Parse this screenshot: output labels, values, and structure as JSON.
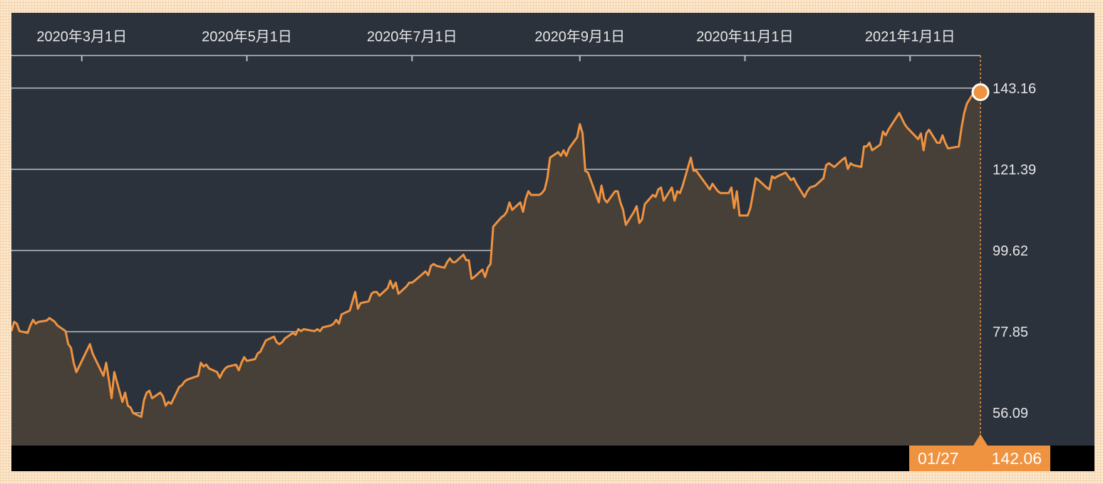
{
  "chart_data": {
    "type": "area",
    "title": "",
    "xlabel": "",
    "ylabel": "",
    "x_start": "2020-02-04",
    "x_end": "2021-01-27",
    "x_tick_labels": [
      {
        "label": "2020年3月1日",
        "date": "2020-03-01"
      },
      {
        "label": "2020年5月1日",
        "date": "2020-05-01"
      },
      {
        "label": "2020年7月1日",
        "date": "2020-07-01"
      },
      {
        "label": "2020年9月1日",
        "date": "2020-09-01"
      },
      {
        "label": "2020年11月1日",
        "date": "2020-11-01"
      },
      {
        "label": "2021年1月1日",
        "date": "2021-01-01"
      }
    ],
    "y_ticks": [
      "143.16",
      "121.39",
      "99.62",
      "77.85",
      "56.09"
    ],
    "ylim": [
      47.3,
      151.9
    ],
    "grid": true,
    "colors": {
      "line": "#ef9340",
      "area": "#474039",
      "background": "#2b323c",
      "grid": "#bcbcbc"
    },
    "series": [
      {
        "points": [
          [
            "2020-02-04",
            78.0
          ],
          [
            "2020-02-05",
            80.5
          ],
          [
            "2020-02-06",
            80.0
          ],
          [
            "2020-02-07",
            78.0
          ],
          [
            "2020-02-10",
            77.5
          ],
          [
            "2020-02-11",
            79.5
          ],
          [
            "2020-02-12",
            81.0
          ],
          [
            "2020-02-13",
            80.0
          ],
          [
            "2020-02-14",
            80.5
          ],
          [
            "2020-02-17",
            80.8
          ],
          [
            "2020-02-18",
            81.5
          ],
          [
            "2020-02-19",
            81.0
          ],
          [
            "2020-02-20",
            80.5
          ],
          [
            "2020-02-21",
            79.5
          ],
          [
            "2020-02-24",
            78.0
          ],
          [
            "2020-02-25",
            74.5
          ],
          [
            "2020-02-26",
            73.5
          ],
          [
            "2020-02-27",
            69.5
          ],
          [
            "2020-02-28",
            67.0
          ],
          [
            "2020-03-02",
            71.5
          ],
          [
            "2020-03-03",
            73.0
          ],
          [
            "2020-03-04",
            74.5
          ],
          [
            "2020-03-05",
            72.0
          ],
          [
            "2020-03-06",
            70.5
          ],
          [
            "2020-03-09",
            66.0
          ],
          [
            "2020-03-10",
            69.5
          ],
          [
            "2020-03-11",
            65.0
          ],
          [
            "2020-03-12",
            60.0
          ],
          [
            "2020-03-13",
            67.0
          ],
          [
            "2020-03-16",
            59.0
          ],
          [
            "2020-03-17",
            61.5
          ],
          [
            "2020-03-18",
            58.0
          ],
          [
            "2020-03-19",
            57.5
          ],
          [
            "2020-03-20",
            56.0
          ],
          [
            "2020-03-23",
            55.0
          ],
          [
            "2020-03-24",
            59.5
          ],
          [
            "2020-03-25",
            61.5
          ],
          [
            "2020-03-26",
            62.0
          ],
          [
            "2020-03-27",
            60.0
          ],
          [
            "2020-03-30",
            61.5
          ],
          [
            "2020-03-31",
            60.5
          ],
          [
            "2020-04-01",
            58.0
          ],
          [
            "2020-04-02",
            59.0
          ],
          [
            "2020-04-03",
            58.5
          ],
          [
            "2020-04-06",
            63.0
          ],
          [
            "2020-04-07",
            63.5
          ],
          [
            "2020-04-08",
            64.5
          ],
          [
            "2020-04-09",
            65.0
          ],
          [
            "2020-04-13",
            66.0
          ],
          [
            "2020-04-14",
            69.5
          ],
          [
            "2020-04-15",
            68.5
          ],
          [
            "2020-04-16",
            69.0
          ],
          [
            "2020-04-17",
            68.0
          ],
          [
            "2020-04-20",
            67.0
          ],
          [
            "2020-04-21",
            65.5
          ],
          [
            "2020-04-22",
            67.0
          ],
          [
            "2020-04-23",
            68.0
          ],
          [
            "2020-04-24",
            68.5
          ],
          [
            "2020-04-27",
            69.0
          ],
          [
            "2020-04-28",
            67.5
          ],
          [
            "2020-04-29",
            69.5
          ],
          [
            "2020-04-30",
            71.0
          ],
          [
            "2020-05-01",
            70.0
          ],
          [
            "2020-05-04",
            70.5
          ],
          [
            "2020-05-05",
            72.0
          ],
          [
            "2020-05-06",
            72.5
          ],
          [
            "2020-05-07",
            74.0
          ],
          [
            "2020-05-08",
            75.5
          ],
          [
            "2020-05-11",
            76.5
          ],
          [
            "2020-05-12",
            75.0
          ],
          [
            "2020-05-13",
            74.5
          ],
          [
            "2020-05-14",
            75.0
          ],
          [
            "2020-05-15",
            76.0
          ],
          [
            "2020-05-18",
            77.5
          ],
          [
            "2020-05-19",
            77.0
          ],
          [
            "2020-05-20",
            78.5
          ],
          [
            "2020-05-21",
            78.0
          ],
          [
            "2020-05-22",
            78.5
          ],
          [
            "2020-05-26",
            78.0
          ],
          [
            "2020-05-27",
            78.5
          ],
          [
            "2020-05-28",
            78.0
          ],
          [
            "2020-05-29",
            79.0
          ],
          [
            "2020-06-01",
            79.5
          ],
          [
            "2020-06-02",
            80.0
          ],
          [
            "2020-06-03",
            81.0
          ],
          [
            "2020-06-04",
            80.0
          ],
          [
            "2020-06-05",
            82.5
          ],
          [
            "2020-06-08",
            83.5
          ],
          [
            "2020-06-09",
            86.0
          ],
          [
            "2020-06-10",
            88.5
          ],
          [
            "2020-06-11",
            84.0
          ],
          [
            "2020-06-12",
            85.5
          ],
          [
            "2020-06-15",
            86.0
          ],
          [
            "2020-06-16",
            88.0
          ],
          [
            "2020-06-17",
            88.5
          ],
          [
            "2020-06-18",
            88.5
          ],
          [
            "2020-06-19",
            87.5
          ],
          [
            "2020-06-22",
            89.5
          ],
          [
            "2020-06-23",
            91.5
          ],
          [
            "2020-06-24",
            89.5
          ],
          [
            "2020-06-25",
            91.0
          ],
          [
            "2020-06-26",
            88.0
          ],
          [
            "2020-06-29",
            90.0
          ],
          [
            "2020-06-30",
            91.0
          ],
          [
            "2020-07-01",
            91.0
          ],
          [
            "2020-07-02",
            91.5
          ],
          [
            "2020-07-06",
            94.0
          ],
          [
            "2020-07-07",
            93.0
          ],
          [
            "2020-07-08",
            95.5
          ],
          [
            "2020-07-09",
            96.0
          ],
          [
            "2020-07-10",
            95.5
          ],
          [
            "2020-07-13",
            95.0
          ],
          [
            "2020-07-14",
            96.5
          ],
          [
            "2020-07-15",
            97.5
          ],
          [
            "2020-07-16",
            96.5
          ],
          [
            "2020-07-17",
            96.5
          ],
          [
            "2020-07-20",
            98.5
          ],
          [
            "2020-07-21",
            97.0
          ],
          [
            "2020-07-22",
            97.0
          ],
          [
            "2020-07-23",
            92.0
          ],
          [
            "2020-07-24",
            92.5
          ],
          [
            "2020-07-27",
            94.5
          ],
          [
            "2020-07-28",
            92.5
          ],
          [
            "2020-07-29",
            95.0
          ],
          [
            "2020-07-30",
            96.0
          ],
          [
            "2020-07-31",
            106.0
          ],
          [
            "2020-08-03",
            108.5
          ],
          [
            "2020-08-04",
            109.0
          ],
          [
            "2020-08-05",
            110.0
          ],
          [
            "2020-08-06",
            112.5
          ],
          [
            "2020-08-07",
            110.5
          ],
          [
            "2020-08-10",
            112.5
          ],
          [
            "2020-08-11",
            110.0
          ],
          [
            "2020-08-12",
            113.5
          ],
          [
            "2020-08-13",
            115.5
          ],
          [
            "2020-08-14",
            114.5
          ],
          [
            "2020-08-17",
            114.5
          ],
          [
            "2020-08-18",
            115.0
          ],
          [
            "2020-08-19",
            116.0
          ],
          [
            "2020-08-20",
            119.0
          ],
          [
            "2020-08-21",
            124.5
          ],
          [
            "2020-08-24",
            126.0
          ],
          [
            "2020-08-25",
            125.0
          ],
          [
            "2020-08-26",
            126.5
          ],
          [
            "2020-08-27",
            125.0
          ],
          [
            "2020-08-28",
            127.0
          ],
          [
            "2020-08-31",
            130.0
          ],
          [
            "2020-09-01",
            133.5
          ],
          [
            "2020-09-02",
            131.0
          ],
          [
            "2020-09-03",
            121.0
          ],
          [
            "2020-09-04",
            120.5
          ],
          [
            "2020-09-08",
            112.5
          ],
          [
            "2020-09-09",
            117.0
          ],
          [
            "2020-09-10",
            113.5
          ],
          [
            "2020-09-11",
            112.5
          ],
          [
            "2020-09-14",
            115.5
          ],
          [
            "2020-09-15",
            115.5
          ],
          [
            "2020-09-16",
            112.5
          ],
          [
            "2020-09-17",
            110.5
          ],
          [
            "2020-09-18",
            106.5
          ],
          [
            "2020-09-21",
            110.0
          ],
          [
            "2020-09-22",
            111.5
          ],
          [
            "2020-09-23",
            107.0
          ],
          [
            "2020-09-24",
            108.0
          ],
          [
            "2020-09-25",
            112.0
          ],
          [
            "2020-09-28",
            114.5
          ],
          [
            "2020-09-29",
            114.0
          ],
          [
            "2020-09-30",
            116.0
          ],
          [
            "2020-10-01",
            116.5
          ],
          [
            "2020-10-02",
            113.0
          ],
          [
            "2020-10-05",
            116.5
          ],
          [
            "2020-10-06",
            113.0
          ],
          [
            "2020-10-07",
            115.5
          ],
          [
            "2020-10-08",
            115.0
          ],
          [
            "2020-10-09",
            117.0
          ],
          [
            "2020-10-12",
            124.5
          ],
          [
            "2020-10-13",
            121.0
          ],
          [
            "2020-10-14",
            121.0
          ],
          [
            "2020-10-15",
            120.0
          ],
          [
            "2020-10-16",
            119.0
          ],
          [
            "2020-10-19",
            116.0
          ],
          [
            "2020-10-20",
            117.5
          ],
          [
            "2020-10-21",
            116.5
          ],
          [
            "2020-10-22",
            115.5
          ],
          [
            "2020-10-23",
            115.0
          ],
          [
            "2020-10-26",
            115.0
          ],
          [
            "2020-10-27",
            116.5
          ],
          [
            "2020-10-28",
            111.0
          ],
          [
            "2020-10-29",
            115.5
          ],
          [
            "2020-10-30",
            109.0
          ],
          [
            "2020-11-02",
            109.0
          ],
          [
            "2020-11-03",
            111.0
          ],
          [
            "2020-11-04",
            115.0
          ],
          [
            "2020-11-05",
            119.0
          ],
          [
            "2020-11-06",
            118.5
          ],
          [
            "2020-11-09",
            116.5
          ],
          [
            "2020-11-10",
            116.0
          ],
          [
            "2020-11-11",
            119.5
          ],
          [
            "2020-11-12",
            119.0
          ],
          [
            "2020-11-13",
            119.5
          ],
          [
            "2020-11-16",
            120.5
          ],
          [
            "2020-11-17",
            119.5
          ],
          [
            "2020-11-18",
            118.5
          ],
          [
            "2020-11-19",
            119.0
          ],
          [
            "2020-11-20",
            117.5
          ],
          [
            "2020-11-23",
            114.0
          ],
          [
            "2020-11-24",
            115.5
          ],
          [
            "2020-11-25",
            116.5
          ],
          [
            "2020-11-27",
            117.0
          ],
          [
            "2020-11-30",
            119.0
          ],
          [
            "2020-12-01",
            122.5
          ],
          [
            "2020-12-02",
            123.0
          ],
          [
            "2020-12-03",
            122.5
          ],
          [
            "2020-12-04",
            122.0
          ],
          [
            "2020-12-07",
            124.0
          ],
          [
            "2020-12-08",
            124.5
          ],
          [
            "2020-12-09",
            121.5
          ],
          [
            "2020-12-10",
            123.0
          ],
          [
            "2020-12-11",
            122.5
          ],
          [
            "2020-12-14",
            122.0
          ],
          [
            "2020-12-15",
            127.5
          ],
          [
            "2020-12-16",
            127.5
          ],
          [
            "2020-12-17",
            128.5
          ],
          [
            "2020-12-18",
            126.5
          ],
          [
            "2020-12-21",
            128.0
          ],
          [
            "2020-12-22",
            131.5
          ],
          [
            "2020-12-23",
            130.5
          ],
          [
            "2020-12-24",
            132.0
          ],
          [
            "2020-12-28",
            136.5
          ],
          [
            "2020-12-29",
            135.0
          ],
          [
            "2020-12-30",
            133.5
          ],
          [
            "2020-12-31",
            132.5
          ],
          [
            "2021-01-04",
            129.5
          ],
          [
            "2021-01-05",
            131.0
          ],
          [
            "2021-01-06",
            126.5
          ],
          [
            "2021-01-07",
            131.0
          ],
          [
            "2021-01-08",
            132.0
          ],
          [
            "2021-01-11",
            128.5
          ],
          [
            "2021-01-12",
            128.5
          ],
          [
            "2021-01-13",
            130.5
          ],
          [
            "2021-01-14",
            128.5
          ],
          [
            "2021-01-15",
            127.0
          ],
          [
            "2021-01-19",
            127.5
          ],
          [
            "2021-01-20",
            132.5
          ],
          [
            "2021-01-21",
            136.5
          ],
          [
            "2021-01-22",
            139.0
          ],
          [
            "2021-01-25",
            142.5
          ],
          [
            "2021-01-26",
            143.0
          ],
          [
            "2021-01-27",
            142.06
          ]
        ]
      }
    ],
    "last_point": {
      "date_label": "01/27",
      "value": "142.06"
    }
  }
}
